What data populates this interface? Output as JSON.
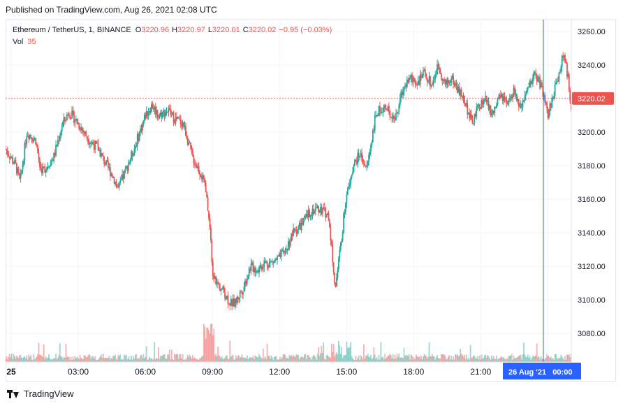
{
  "published": "Published on TradingView.com, Aug 26, 2021 02:08 UTC",
  "legend": {
    "symbol": "Ethereum / TetherUS, 1, BINANCE",
    "o_label": "O",
    "o_value": "3220.96",
    "h_label": "H",
    "h_value": "3220.97",
    "l_label": "L",
    "l_value": "3220.01",
    "c_label": "C",
    "c_value": "3220.02",
    "change": "−0.95 (−0.03%)",
    "vol_label": "Vol",
    "vol_value": "35"
  },
  "footer": {
    "brand": "TradingView"
  },
  "colors": {
    "up": "#26a69a",
    "down": "#ef5350",
    "crosshair": "#2962ff",
    "price_line": "#ef5350",
    "grid": "#f0f3fa"
  },
  "chart_data": {
    "type": "candlestick",
    "title": "Ethereum / TetherUS, 1, BINANCE",
    "ylim": [
      3063,
      3267
    ],
    "y_ticks": [
      "3260.00",
      "3240.00",
      "3220.00",
      "3200.00",
      "3180.00",
      "3160.00",
      "3140.00",
      "3120.00",
      "3100.00",
      "3080.00"
    ],
    "y_tick_values": [
      3260,
      3240,
      3220,
      3200,
      3180,
      3160,
      3140,
      3120,
      3100,
      3080
    ],
    "x_range_hours": [
      -0.25,
      25.05
    ],
    "x_ticks": [
      {
        "label": "25",
        "hour": 0
      },
      {
        "label": "03:00",
        "hour": 3
      },
      {
        "label": "06:00",
        "hour": 6
      },
      {
        "label": "09:00",
        "hour": 9
      },
      {
        "label": "12:00",
        "hour": 12
      },
      {
        "label": "15:00",
        "hour": 15
      },
      {
        "label": "18:00",
        "hour": 18
      },
      {
        "label": "21:00",
        "hour": 21
      },
      {
        "label": "00:00",
        "hour": 24
      }
    ],
    "crosshair": {
      "hour": 23.8,
      "label": "26 Aug '21   00:00"
    },
    "last_price": {
      "value": 3220.02,
      "label": "3220.02"
    },
    "price_path": [
      [
        -0.25,
        3190
      ],
      [
        0.2,
        3180
      ],
      [
        0.4,
        3170
      ],
      [
        0.7,
        3200
      ],
      [
        1.1,
        3195
      ],
      [
        1.3,
        3178
      ],
      [
        1.5,
        3178
      ],
      [
        1.9,
        3185
      ],
      [
        2.3,
        3205
      ],
      [
        2.6,
        3212
      ],
      [
        3.0,
        3205
      ],
      [
        3.5,
        3195
      ],
      [
        3.9,
        3190
      ],
      [
        4.1,
        3184
      ],
      [
        4.5,
        3175
      ],
      [
        4.8,
        3166
      ],
      [
        5.2,
        3180
      ],
      [
        5.5,
        3190
      ],
      [
        6.0,
        3210
      ],
      [
        6.3,
        3216
      ],
      [
        6.6,
        3210
      ],
      [
        7.0,
        3213
      ],
      [
        7.3,
        3208
      ],
      [
        7.7,
        3205
      ],
      [
        8.1,
        3185
      ],
      [
        8.5,
        3175
      ],
      [
        8.7,
        3165
      ],
      [
        8.9,
        3140
      ],
      [
        9.0,
        3115
      ],
      [
        9.2,
        3110
      ],
      [
        9.5,
        3105
      ],
      [
        9.8,
        3098
      ],
      [
        10.0,
        3098
      ],
      [
        10.4,
        3108
      ],
      [
        10.7,
        3120
      ],
      [
        11.0,
        3118
      ],
      [
        11.3,
        3122
      ],
      [
        11.6,
        3122
      ],
      [
        12.0,
        3125
      ],
      [
        12.3,
        3130
      ],
      [
        12.6,
        3140
      ],
      [
        13.0,
        3145
      ],
      [
        13.4,
        3153
      ],
      [
        13.8,
        3155
      ],
      [
        14.2,
        3150
      ],
      [
        14.5,
        3107
      ],
      [
        14.8,
        3140
      ],
      [
        15.0,
        3165
      ],
      [
        15.3,
        3180
      ],
      [
        15.6,
        3187
      ],
      [
        15.9,
        3178
      ],
      [
        16.3,
        3210
      ],
      [
        16.6,
        3215
      ],
      [
        16.9,
        3212
      ],
      [
        17.2,
        3208
      ],
      [
        17.5,
        3225
      ],
      [
        17.8,
        3232
      ],
      [
        18.2,
        3230
      ],
      [
        18.5,
        3235
      ],
      [
        18.8,
        3228
      ],
      [
        19.1,
        3240
      ],
      [
        19.4,
        3228
      ],
      [
        19.7,
        3232
      ],
      [
        20.0,
        3225
      ],
      [
        20.3,
        3218
      ],
      [
        20.6,
        3205
      ],
      [
        20.9,
        3215
      ],
      [
        21.2,
        3220
      ],
      [
        21.5,
        3210
      ],
      [
        21.9,
        3222
      ],
      [
        22.2,
        3215
      ],
      [
        22.5,
        3225
      ],
      [
        22.8,
        3212
      ],
      [
        23.1,
        3225
      ],
      [
        23.4,
        3235
      ],
      [
        23.7,
        3228
      ],
      [
        24.0,
        3210
      ],
      [
        24.3,
        3225
      ],
      [
        24.5,
        3235
      ],
      [
        24.7,
        3247
      ],
      [
        24.9,
        3232
      ],
      [
        25.05,
        3215
      ]
    ]
  }
}
